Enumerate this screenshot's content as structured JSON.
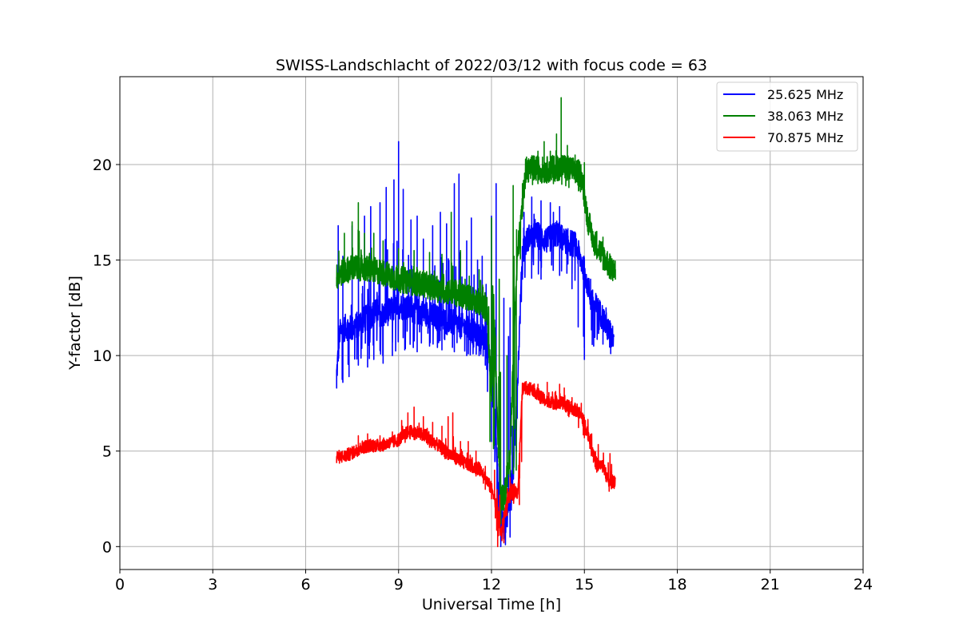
{
  "chart_data": {
    "type": "line",
    "title": "SWISS-Landschlacht of 2022/03/12 with focus code = 63",
    "xlabel": "Universal Time [h]",
    "ylabel": "Y-factor [dB]",
    "xlim": [
      0,
      24
    ],
    "ylim": [
      -1.2,
      24.6
    ],
    "xticks": [
      0,
      3,
      6,
      9,
      12,
      15,
      18,
      21,
      24
    ],
    "yticks": [
      0,
      5,
      10,
      15,
      20
    ],
    "grid": true,
    "legend": "top-right",
    "series": [
      {
        "name": "25.625 MHz",
        "color": "#0000ff",
        "x": [
          7.0,
          7.1,
          7.3,
          7.5,
          7.8,
          8.0,
          8.3,
          8.5,
          8.8,
          9.0,
          9.3,
          9.6,
          9.9,
          10.2,
          10.5,
          10.8,
          11.1,
          11.4,
          11.7,
          11.9,
          12.1,
          12.25,
          12.4,
          12.55,
          12.7,
          12.85,
          13.0,
          13.2,
          13.5,
          13.8,
          14.1,
          14.4,
          14.7,
          15.0,
          15.2,
          15.4,
          15.6,
          15.8,
          15.95
        ],
        "y": [
          9.0,
          11.2,
          11.5,
          11.4,
          11.8,
          12.0,
          12.3,
          12.1,
          12.4,
          12.6,
          12.5,
          12.3,
          12.2,
          12.0,
          11.8,
          11.7,
          11.5,
          11.3,
          11.0,
          10.5,
          7.0,
          2.0,
          1.0,
          2.0,
          4.0,
          9.0,
          15.5,
          16.2,
          16.3,
          16.0,
          16.4,
          16.0,
          15.8,
          14.5,
          13.0,
          12.5,
          12.0,
          11.2,
          11.0
        ],
        "spikes": [
          [
            7.05,
            16.8
          ],
          [
            7.2,
            15.2
          ],
          [
            7.5,
            16.8
          ],
          [
            7.9,
            17.3
          ],
          [
            8.1,
            17.8
          ],
          [
            8.4,
            18.0
          ],
          [
            8.6,
            18.8
          ],
          [
            8.85,
            19.2
          ],
          [
            9.0,
            21.2
          ],
          [
            9.15,
            18.7
          ],
          [
            9.4,
            17.1
          ],
          [
            9.6,
            17.3
          ],
          [
            9.8,
            16.1
          ],
          [
            10.1,
            16.8
          ],
          [
            10.35,
            17.5
          ],
          [
            10.55,
            16.9
          ],
          [
            10.8,
            19.0
          ],
          [
            10.95,
            19.5
          ],
          [
            11.2,
            16.0
          ],
          [
            11.35,
            17.2
          ],
          [
            11.55,
            15.0
          ],
          [
            11.7,
            15.2
          ],
          [
            12.0,
            17.3
          ],
          [
            12.15,
            19.0
          ],
          [
            12.4,
            13.0
          ],
          [
            12.55,
            11.0
          ],
          [
            12.6,
            12.5
          ],
          [
            13.05,
            17.5
          ],
          [
            13.3,
            18.3
          ],
          [
            13.6,
            18.1
          ],
          [
            13.9,
            18.0
          ],
          [
            14.0,
            17.5
          ],
          [
            14.2,
            17.8
          ],
          [
            14.45,
            16.4
          ],
          [
            14.7,
            16.2
          ],
          [
            15.0,
            15.0
          ],
          [
            15.2,
            14.0
          ],
          [
            15.4,
            13.0
          ],
          [
            15.7,
            12.5
          ]
        ],
        "dips": [
          [
            7.0,
            8.3
          ],
          [
            7.2,
            8.6
          ],
          [
            7.4,
            8.9
          ],
          [
            7.7,
            9.5
          ],
          [
            8.0,
            9.4
          ],
          [
            8.2,
            9.8
          ],
          [
            8.5,
            9.6
          ],
          [
            8.8,
            10.0
          ],
          [
            9.2,
            10.3
          ],
          [
            9.6,
            10.2
          ],
          [
            10.0,
            10.5
          ],
          [
            10.4,
            10.3
          ],
          [
            10.8,
            10.2
          ],
          [
            11.2,
            10.0
          ],
          [
            11.6,
            10.0
          ],
          [
            11.8,
            9.5
          ],
          [
            12.0,
            5.5
          ],
          [
            12.2,
            1.0
          ],
          [
            12.3,
            0.0
          ],
          [
            12.45,
            0.1
          ],
          [
            12.6,
            0.5
          ],
          [
            12.8,
            5.0
          ],
          [
            13.0,
            14.0
          ],
          [
            13.6,
            14.0
          ],
          [
            14.2,
            14.2
          ],
          [
            14.6,
            13.5
          ],
          [
            14.8,
            11.5
          ],
          [
            15.0,
            9.8
          ],
          [
            15.3,
            10.5
          ],
          [
            15.6,
            10.6
          ],
          [
            15.85,
            10.1
          ]
        ]
      },
      {
        "name": "38.063 MHz",
        "color": "#008000",
        "x": [
          7.0,
          7.2,
          7.5,
          7.8,
          8.1,
          8.4,
          8.7,
          9.0,
          9.3,
          9.6,
          9.9,
          10.2,
          10.5,
          10.8,
          11.1,
          11.4,
          11.7,
          11.85,
          12.0,
          12.1,
          12.2,
          12.3,
          12.45,
          12.6,
          12.75,
          12.85,
          12.95,
          13.1,
          13.4,
          13.7,
          14.0,
          14.3,
          14.6,
          14.9,
          15.1,
          15.3,
          15.5,
          15.7,
          15.9,
          16.0
        ],
        "y": [
          14.1,
          14.4,
          14.6,
          14.6,
          14.5,
          14.4,
          14.2,
          14.0,
          13.9,
          13.8,
          13.7,
          13.5,
          13.4,
          13.3,
          13.1,
          13.0,
          12.7,
          12.5,
          8.0,
          12.0,
          6.0,
          2.5,
          3.0,
          5.0,
          12.0,
          15.5,
          17.0,
          19.7,
          19.8,
          19.7,
          19.8,
          19.9,
          19.7,
          19.5,
          17.2,
          16.0,
          15.5,
          15.0,
          14.4,
          14.5
        ],
        "spikes": [
          [
            7.25,
            16.4
          ],
          [
            7.5,
            17.0
          ],
          [
            7.7,
            18.0
          ],
          [
            7.9,
            16.4
          ],
          [
            8.2,
            16.4
          ],
          [
            8.5,
            16.0
          ],
          [
            9.0,
            15.6
          ],
          [
            9.5,
            15.5
          ],
          [
            10.0,
            15.4
          ],
          [
            10.4,
            15.3
          ],
          [
            10.7,
            17.5
          ],
          [
            11.0,
            15.5
          ],
          [
            11.6,
            14.5
          ],
          [
            12.0,
            17.2
          ],
          [
            12.25,
            14.0
          ],
          [
            12.5,
            10.0
          ],
          [
            12.7,
            18.9
          ],
          [
            13.0,
            19.0
          ],
          [
            13.2,
            20.3
          ],
          [
            13.5,
            20.7
          ],
          [
            13.7,
            21.2
          ],
          [
            13.9,
            20.7
          ],
          [
            14.1,
            21.6
          ],
          [
            14.25,
            23.5
          ],
          [
            14.45,
            21.0
          ],
          [
            14.7,
            20.5
          ],
          [
            15.0,
            20.1
          ],
          [
            15.2,
            17.0
          ],
          [
            15.4,
            16.5
          ],
          [
            15.6,
            16.2
          ],
          [
            15.85,
            15.2
          ]
        ],
        "dips": [
          [
            7.0,
            13.7
          ],
          [
            7.5,
            14.0
          ],
          [
            8.0,
            13.9
          ],
          [
            8.5,
            13.7
          ],
          [
            9.0,
            13.5
          ],
          [
            9.5,
            13.3
          ],
          [
            10.0,
            13.1
          ],
          [
            10.5,
            12.9
          ],
          [
            11.0,
            12.6
          ],
          [
            11.5,
            12.3
          ],
          [
            11.8,
            11.8
          ],
          [
            11.95,
            5.5
          ],
          [
            12.3,
            1.2
          ],
          [
            12.4,
            1.5
          ],
          [
            12.6,
            2.7
          ],
          [
            12.8,
            4.0
          ],
          [
            13.0,
            18.5
          ],
          [
            13.5,
            19.0
          ],
          [
            14.0,
            19.0
          ],
          [
            14.5,
            18.8
          ],
          [
            15.0,
            18.0
          ],
          [
            15.3,
            15.5
          ],
          [
            15.6,
            14.5
          ],
          [
            15.8,
            14.2
          ],
          [
            16.0,
            14.0
          ]
        ]
      },
      {
        "name": "70.875 MHz",
        "color": "#ff0000",
        "x": [
          7.0,
          7.2,
          7.5,
          7.8,
          8.1,
          8.4,
          8.7,
          9.0,
          9.3,
          9.6,
          9.9,
          10.2,
          10.5,
          10.8,
          11.1,
          11.4,
          11.7,
          11.9,
          12.05,
          12.2,
          12.3,
          12.4,
          12.55,
          12.7,
          12.85,
          13.0,
          13.3,
          13.6,
          13.9,
          14.2,
          14.5,
          14.8,
          15.0,
          15.2,
          15.4,
          15.6,
          15.8,
          16.0
        ],
        "y": [
          4.7,
          4.7,
          4.9,
          5.2,
          5.3,
          5.3,
          5.4,
          5.6,
          6.0,
          6.0,
          5.7,
          5.4,
          5.0,
          4.7,
          4.4,
          4.2,
          4.0,
          3.3,
          2.9,
          1.8,
          0.6,
          1.5,
          2.6,
          3.0,
          2.8,
          8.3,
          8.3,
          7.8,
          7.5,
          7.6,
          7.3,
          7.1,
          6.5,
          5.5,
          4.3,
          4.2,
          3.3,
          3.5
        ],
        "spikes": [
          [
            7.3,
            5.0
          ],
          [
            7.7,
            5.8
          ],
          [
            8.0,
            5.9
          ],
          [
            8.4,
            5.8
          ],
          [
            8.8,
            6.0
          ],
          [
            9.1,
            6.6
          ],
          [
            9.3,
            7.0
          ],
          [
            9.5,
            7.3
          ],
          [
            9.8,
            6.8
          ],
          [
            10.1,
            6.5
          ],
          [
            10.4,
            6.3
          ],
          [
            10.6,
            6.8
          ],
          [
            10.75,
            7.0
          ],
          [
            11.0,
            5.5
          ],
          [
            11.25,
            5.5
          ],
          [
            11.5,
            5.0
          ],
          [
            11.8,
            4.2
          ],
          [
            12.1,
            4.0
          ],
          [
            12.6,
            3.6
          ],
          [
            12.9,
            3.3
          ],
          [
            13.1,
            8.6
          ],
          [
            13.5,
            8.5
          ],
          [
            13.8,
            8.6
          ],
          [
            14.2,
            8.5
          ],
          [
            14.35,
            8.3
          ],
          [
            14.6,
            7.8
          ],
          [
            14.9,
            7.5
          ]
        ],
        "dips": [
          [
            7.0,
            4.4
          ],
          [
            7.5,
            4.6
          ],
          [
            8.0,
            5.0
          ],
          [
            8.5,
            5.0
          ],
          [
            9.0,
            5.3
          ],
          [
            9.5,
            5.6
          ],
          [
            10.0,
            5.2
          ],
          [
            10.5,
            4.6
          ],
          [
            11.0,
            4.2
          ],
          [
            11.5,
            3.7
          ],
          [
            11.8,
            3.0
          ],
          [
            12.0,
            2.5
          ],
          [
            12.2,
            0.0
          ],
          [
            12.4,
            0.2
          ],
          [
            12.6,
            2.3
          ],
          [
            12.9,
            2.2
          ],
          [
            13.1,
            8.0
          ],
          [
            13.6,
            7.5
          ],
          [
            14.0,
            7.2
          ],
          [
            14.5,
            6.8
          ],
          [
            15.0,
            5.7
          ],
          [
            15.4,
            3.9
          ],
          [
            15.8,
            2.9
          ]
        ]
      }
    ]
  }
}
